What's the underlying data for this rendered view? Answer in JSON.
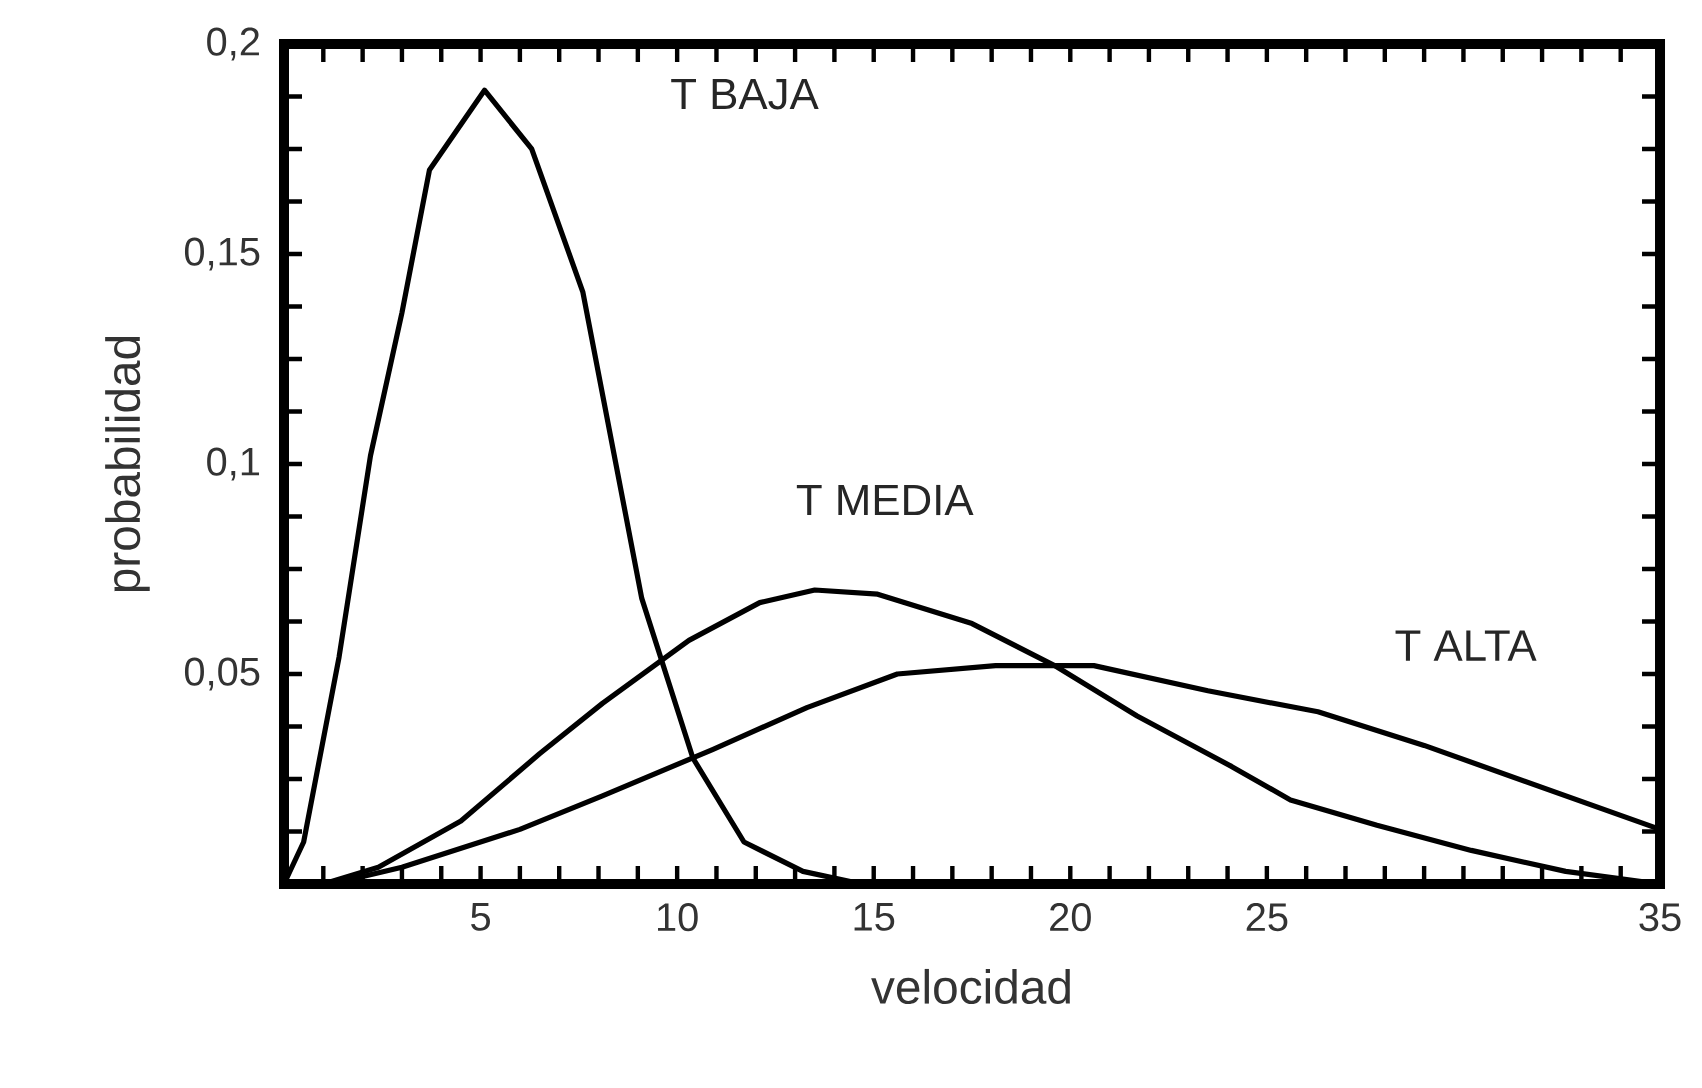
{
  "chart_data": {
    "type": "line",
    "xlabel": "velocidad",
    "ylabel": "probabilidad",
    "xlim": [
      0,
      35
    ],
    "ylim": [
      0,
      0.2
    ],
    "xticks": [
      {
        "value": 1,
        "label": null
      },
      {
        "value": 2,
        "label": null
      },
      {
        "value": 3,
        "label": null
      },
      {
        "value": 4,
        "label": null
      },
      {
        "value": 5,
        "label": "5"
      },
      {
        "value": 6,
        "label": null
      },
      {
        "value": 7,
        "label": null
      },
      {
        "value": 8,
        "label": null
      },
      {
        "value": 9,
        "label": null
      },
      {
        "value": 10,
        "label": "10"
      },
      {
        "value": 11,
        "label": null
      },
      {
        "value": 12,
        "label": null
      },
      {
        "value": 13,
        "label": null
      },
      {
        "value": 14,
        "label": null
      },
      {
        "value": 15,
        "label": "15"
      },
      {
        "value": 16,
        "label": null
      },
      {
        "value": 17,
        "label": null
      },
      {
        "value": 18,
        "label": null
      },
      {
        "value": 19,
        "label": null
      },
      {
        "value": 20,
        "label": "20"
      },
      {
        "value": 21,
        "label": null
      },
      {
        "value": 22,
        "label": null
      },
      {
        "value": 23,
        "label": null
      },
      {
        "value": 24,
        "label": null
      },
      {
        "value": 25,
        "label": "25"
      },
      {
        "value": 26,
        "label": null
      },
      {
        "value": 27,
        "label": null
      },
      {
        "value": 28,
        "label": null
      },
      {
        "value": 29,
        "label": null
      },
      {
        "value": 30,
        "label": null
      },
      {
        "value": 31,
        "label": null
      },
      {
        "value": 32,
        "label": null
      },
      {
        "value": 33,
        "label": null
      },
      {
        "value": 34,
        "label": null
      },
      {
        "value": 35,
        "label": "35"
      }
    ],
    "yticks": [
      {
        "value": 0.0125,
        "label": null
      },
      {
        "value": 0.025,
        "label": null
      },
      {
        "value": 0.0375,
        "label": null
      },
      {
        "value": 0.05,
        "label": "0,05"
      },
      {
        "value": 0.0625,
        "label": null
      },
      {
        "value": 0.075,
        "label": null
      },
      {
        "value": 0.0875,
        "label": null
      },
      {
        "value": 0.1,
        "label": "0,1"
      },
      {
        "value": 0.1125,
        "label": null
      },
      {
        "value": 0.125,
        "label": null
      },
      {
        "value": 0.1375,
        "label": null
      },
      {
        "value": 0.15,
        "label": "0,15"
      },
      {
        "value": 0.1625,
        "label": null
      },
      {
        "value": 0.175,
        "label": null
      },
      {
        "value": 0.1875,
        "label": null
      },
      {
        "value": 0.2,
        "label": "0,2"
      }
    ],
    "marker": "none",
    "line_style": "solid",
    "series": [
      {
        "name": "T BAJA",
        "color": "#000000",
        "x": [
          0,
          0.5,
          1.4,
          2.2,
          3,
          3.7,
          5.1,
          6.3,
          7.6,
          9.1,
          10.4,
          11.7,
          13.2,
          14.7
        ],
        "values": [
          0,
          0.01,
          0.054,
          0.102,
          0.136,
          0.17,
          0.189,
          0.175,
          0.141,
          0.068,
          0.03,
          0.01,
          0.003,
          0
        ]
      },
      {
        "name": "T MEDIA",
        "color": "#000000",
        "x": [
          1,
          2.4,
          4.5,
          6.5,
          8.1,
          10.3,
          12.1,
          13.5,
          15.1,
          17.5,
          19.6,
          21.7,
          24.1,
          25.6,
          27.8,
          30.2,
          32.6,
          35
        ],
        "values": [
          0,
          0.004,
          0.015,
          0.031,
          0.043,
          0.058,
          0.067,
          0.07,
          0.069,
          0.062,
          0.052,
          0.04,
          0.028,
          0.02,
          0.014,
          0.008,
          0.003,
          0
        ]
      },
      {
        "name": "T ALTA",
        "color": "#000000",
        "x": [
          1.2,
          3,
          6,
          8.1,
          10.9,
          13.3,
          15.6,
          18.1,
          20.6,
          23.5,
          26.3,
          29,
          32,
          35
        ],
        "values": [
          0,
          0.004,
          0.013,
          0.021,
          0.032,
          0.042,
          0.05,
          0.052,
          0.052,
          0.046,
          0.041,
          0.033,
          0.023,
          0.013
        ]
      }
    ],
    "grid": false
  }
}
